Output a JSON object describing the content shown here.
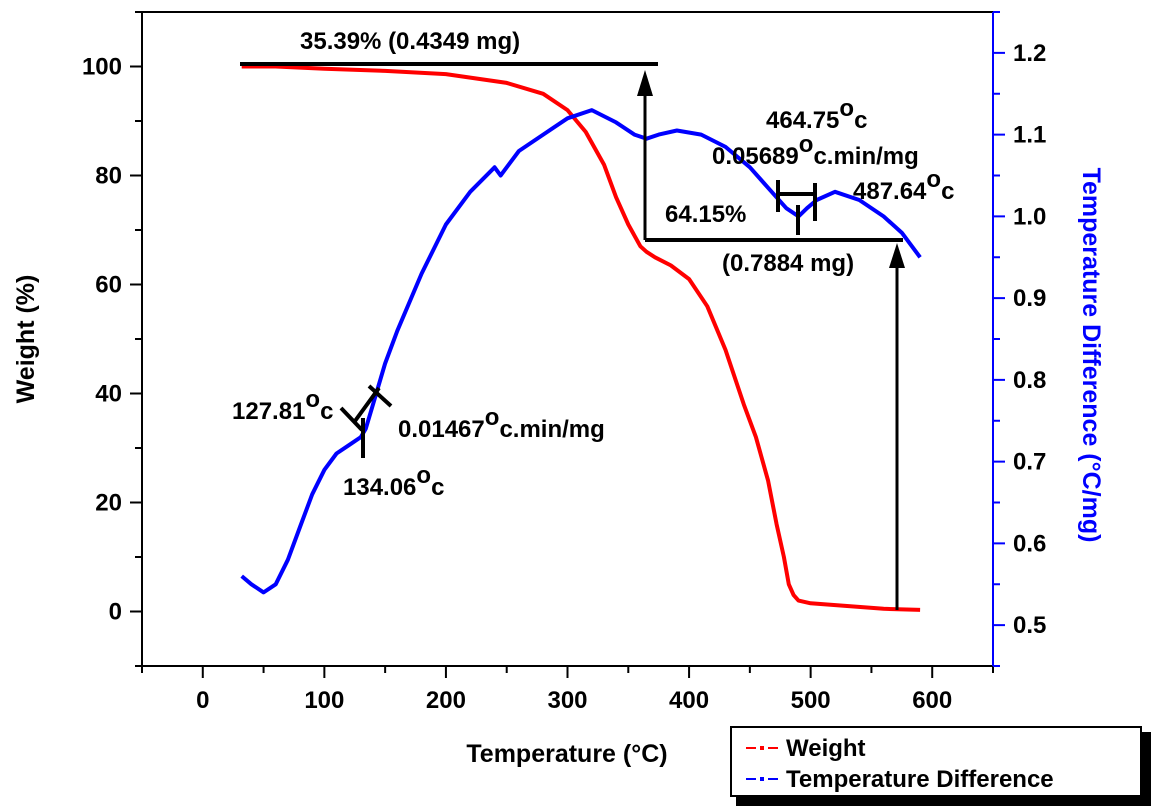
{
  "chart_data": {
    "type": "line",
    "xlabel": "Temperature (°C)",
    "ylabel_left": "Weight (%)",
    "ylabel_right": "Temperature Difference (°C/mg)",
    "xlim": [
      -50,
      650
    ],
    "ylim_left": [
      -10,
      110
    ],
    "ylim_right": [
      0.45,
      1.25
    ],
    "x_ticks": [
      0,
      100,
      200,
      300,
      400,
      500,
      600
    ],
    "y_left_ticks": [
      0,
      20,
      40,
      60,
      80,
      100
    ],
    "y_right_ticks": [
      "0.5",
      "0.6",
      "0.7",
      "0.8",
      "0.9",
      "1.0",
      "1.1",
      "1.2"
    ],
    "grid": false,
    "legend_position": "bottom-right",
    "colors": {
      "weight": "#ff0000",
      "temperature_difference": "#0000ff",
      "annotation": "#000000"
    },
    "series": [
      {
        "name": "Weight",
        "axis": "left",
        "x": [
          32,
          60,
          100,
          150,
          200,
          250,
          280,
          300,
          315,
          330,
          340,
          350,
          360,
          365,
          372,
          385,
          400,
          415,
          430,
          445,
          455,
          465,
          472,
          478,
          482,
          486,
          490,
          500,
          530,
          560,
          590
        ],
        "y": [
          100,
          100,
          99.6,
          99.2,
          98.6,
          97,
          95,
          92,
          88,
          82,
          76,
          71,
          67,
          66,
          65,
          63.5,
          61,
          56,
          48,
          38,
          32,
          24,
          16,
          10,
          5,
          3,
          2,
          1.5,
          1,
          0.5,
          0.3
        ]
      },
      {
        "name": "Temperature Difference",
        "axis": "right",
        "x": [
          32,
          40,
          50,
          60,
          70,
          80,
          90,
          100,
          110,
          120,
          130,
          134,
          140,
          150,
          160,
          180,
          200,
          220,
          240,
          245,
          250,
          260,
          280,
          300,
          320,
          340,
          355,
          365,
          375,
          390,
          410,
          430,
          450,
          465,
          480,
          490,
          497,
          505,
          520,
          540,
          560,
          575,
          590
        ],
        "y": [
          0.56,
          0.55,
          0.54,
          0.55,
          0.58,
          0.62,
          0.66,
          0.69,
          0.71,
          0.72,
          0.73,
          0.74,
          0.77,
          0.82,
          0.86,
          0.93,
          0.99,
          1.03,
          1.06,
          1.05,
          1.06,
          1.08,
          1.1,
          1.12,
          1.13,
          1.115,
          1.1,
          1.095,
          1.1,
          1.105,
          1.1,
          1.085,
          1.06,
          1.035,
          1.01,
          1.0,
          1.01,
          1.02,
          1.03,
          1.02,
          1.0,
          0.98,
          0.95
        ]
      }
    ],
    "annotations": {
      "mass_loss_1": "35.39% (0.4349 mg)",
      "mass_loss_2": "64.15%",
      "mass_loss_2_mg": "(0.7884 mg)",
      "peak_1_onset_value": "127.81",
      "peak_1_min_value": "134.06",
      "peak_1_height_value": "0.01467",
      "peak_1_height_unit": "c.min/mg",
      "peak_2_min_value": "464.75",
      "peak_2_height_value": "0.05689",
      "peak_2_height_unit": "c.min/mg",
      "peak_2_end_value": "487.64",
      "degree_superscript": "o",
      "unit_c": "c"
    }
  }
}
